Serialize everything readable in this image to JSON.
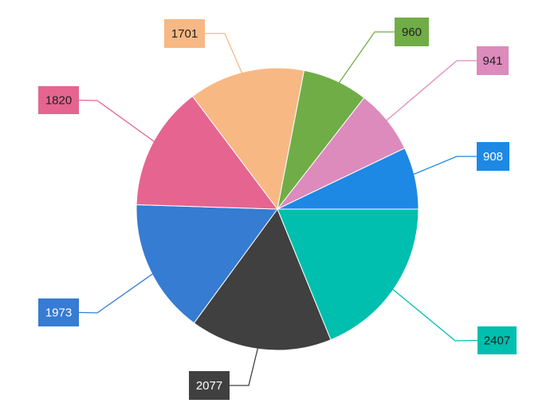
{
  "chart_data": {
    "type": "pie",
    "title": "",
    "start_angle_deg": 0,
    "direction": "clockwise",
    "slices": [
      {
        "value": 2407,
        "label": "2407",
        "color": "#00BFAE",
        "label_text_color": "#222222"
      },
      {
        "value": 2077,
        "label": "2077",
        "color": "#404040",
        "label_text_color": "#ffffff"
      },
      {
        "value": 1973,
        "label": "1973",
        "color": "#357CD2",
        "label_text_color": "#ffffff"
      },
      {
        "value": 1820,
        "label": "1820",
        "color": "#E56590",
        "label_text_color": "#222222"
      },
      {
        "value": 1701,
        "label": "1701",
        "color": "#F8B883",
        "label_text_color": "#222222"
      },
      {
        "value": 960,
        "label": "960",
        "color": "#70AD47",
        "label_text_color": "#222222"
      },
      {
        "value": 941,
        "label": "941",
        "color": "#DD8ABD",
        "label_text_color": "#222222"
      },
      {
        "value": 908,
        "label": "908",
        "color": "#1E88E5",
        "label_text_color": "#ffffff"
      }
    ]
  }
}
